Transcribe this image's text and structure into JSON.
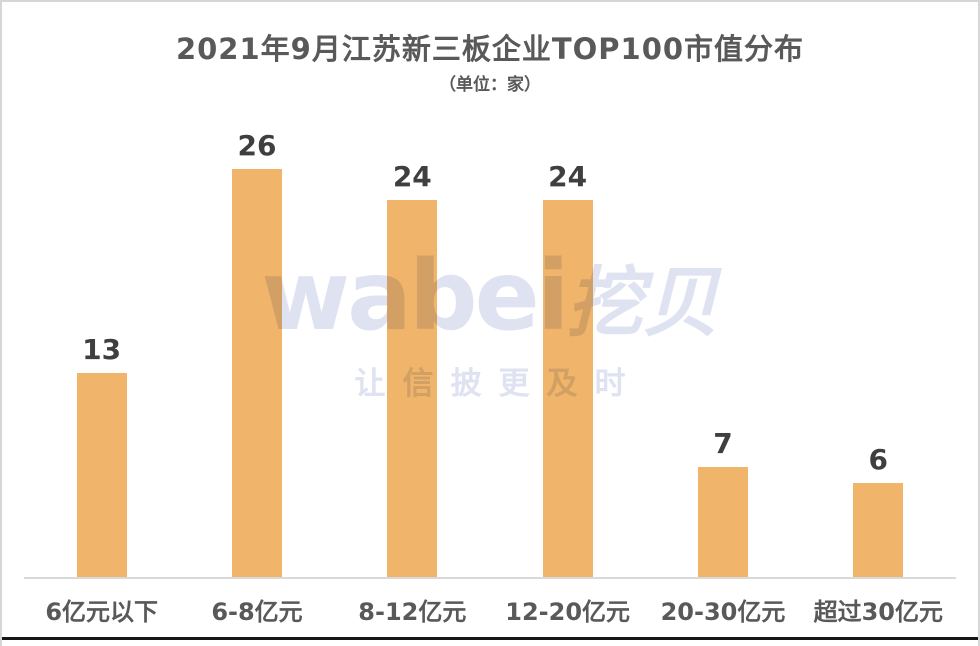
{
  "chart": {
    "title": "2021年9月江苏新三板企业TOP100市值分布",
    "subtitle": "（单位：家）"
  },
  "watermark": {
    "latin": "wabei",
    "cjk": "挖贝",
    "slogan": "让信披更及时",
    "color": "#DFE3F1"
  },
  "chart_data": {
    "type": "bar",
    "title": "2021年9月江苏新三板企业TOP100市值分布",
    "subtitle": "（单位：家）",
    "unit": "家",
    "categories": [
      "6亿元以下",
      "6-8亿元",
      "8-12亿元",
      "12-20亿元",
      "20-30亿元",
      "超过30亿元"
    ],
    "values": [
      13,
      26,
      24,
      24,
      7,
      6
    ],
    "xlabel": "",
    "ylabel": "",
    "ylim": [
      0,
      28
    ],
    "grid": false,
    "legend": false,
    "value_labels_shown": true,
    "bar_color": "#F0B46A",
    "value_label_color": "#3F3F3F",
    "category_label_color": "#595959",
    "title_color": "#595959",
    "axis_line_color": "#D9D9D9",
    "frame_border_color": "#D6D6D6",
    "bottom_rule_color": "#161616"
  }
}
